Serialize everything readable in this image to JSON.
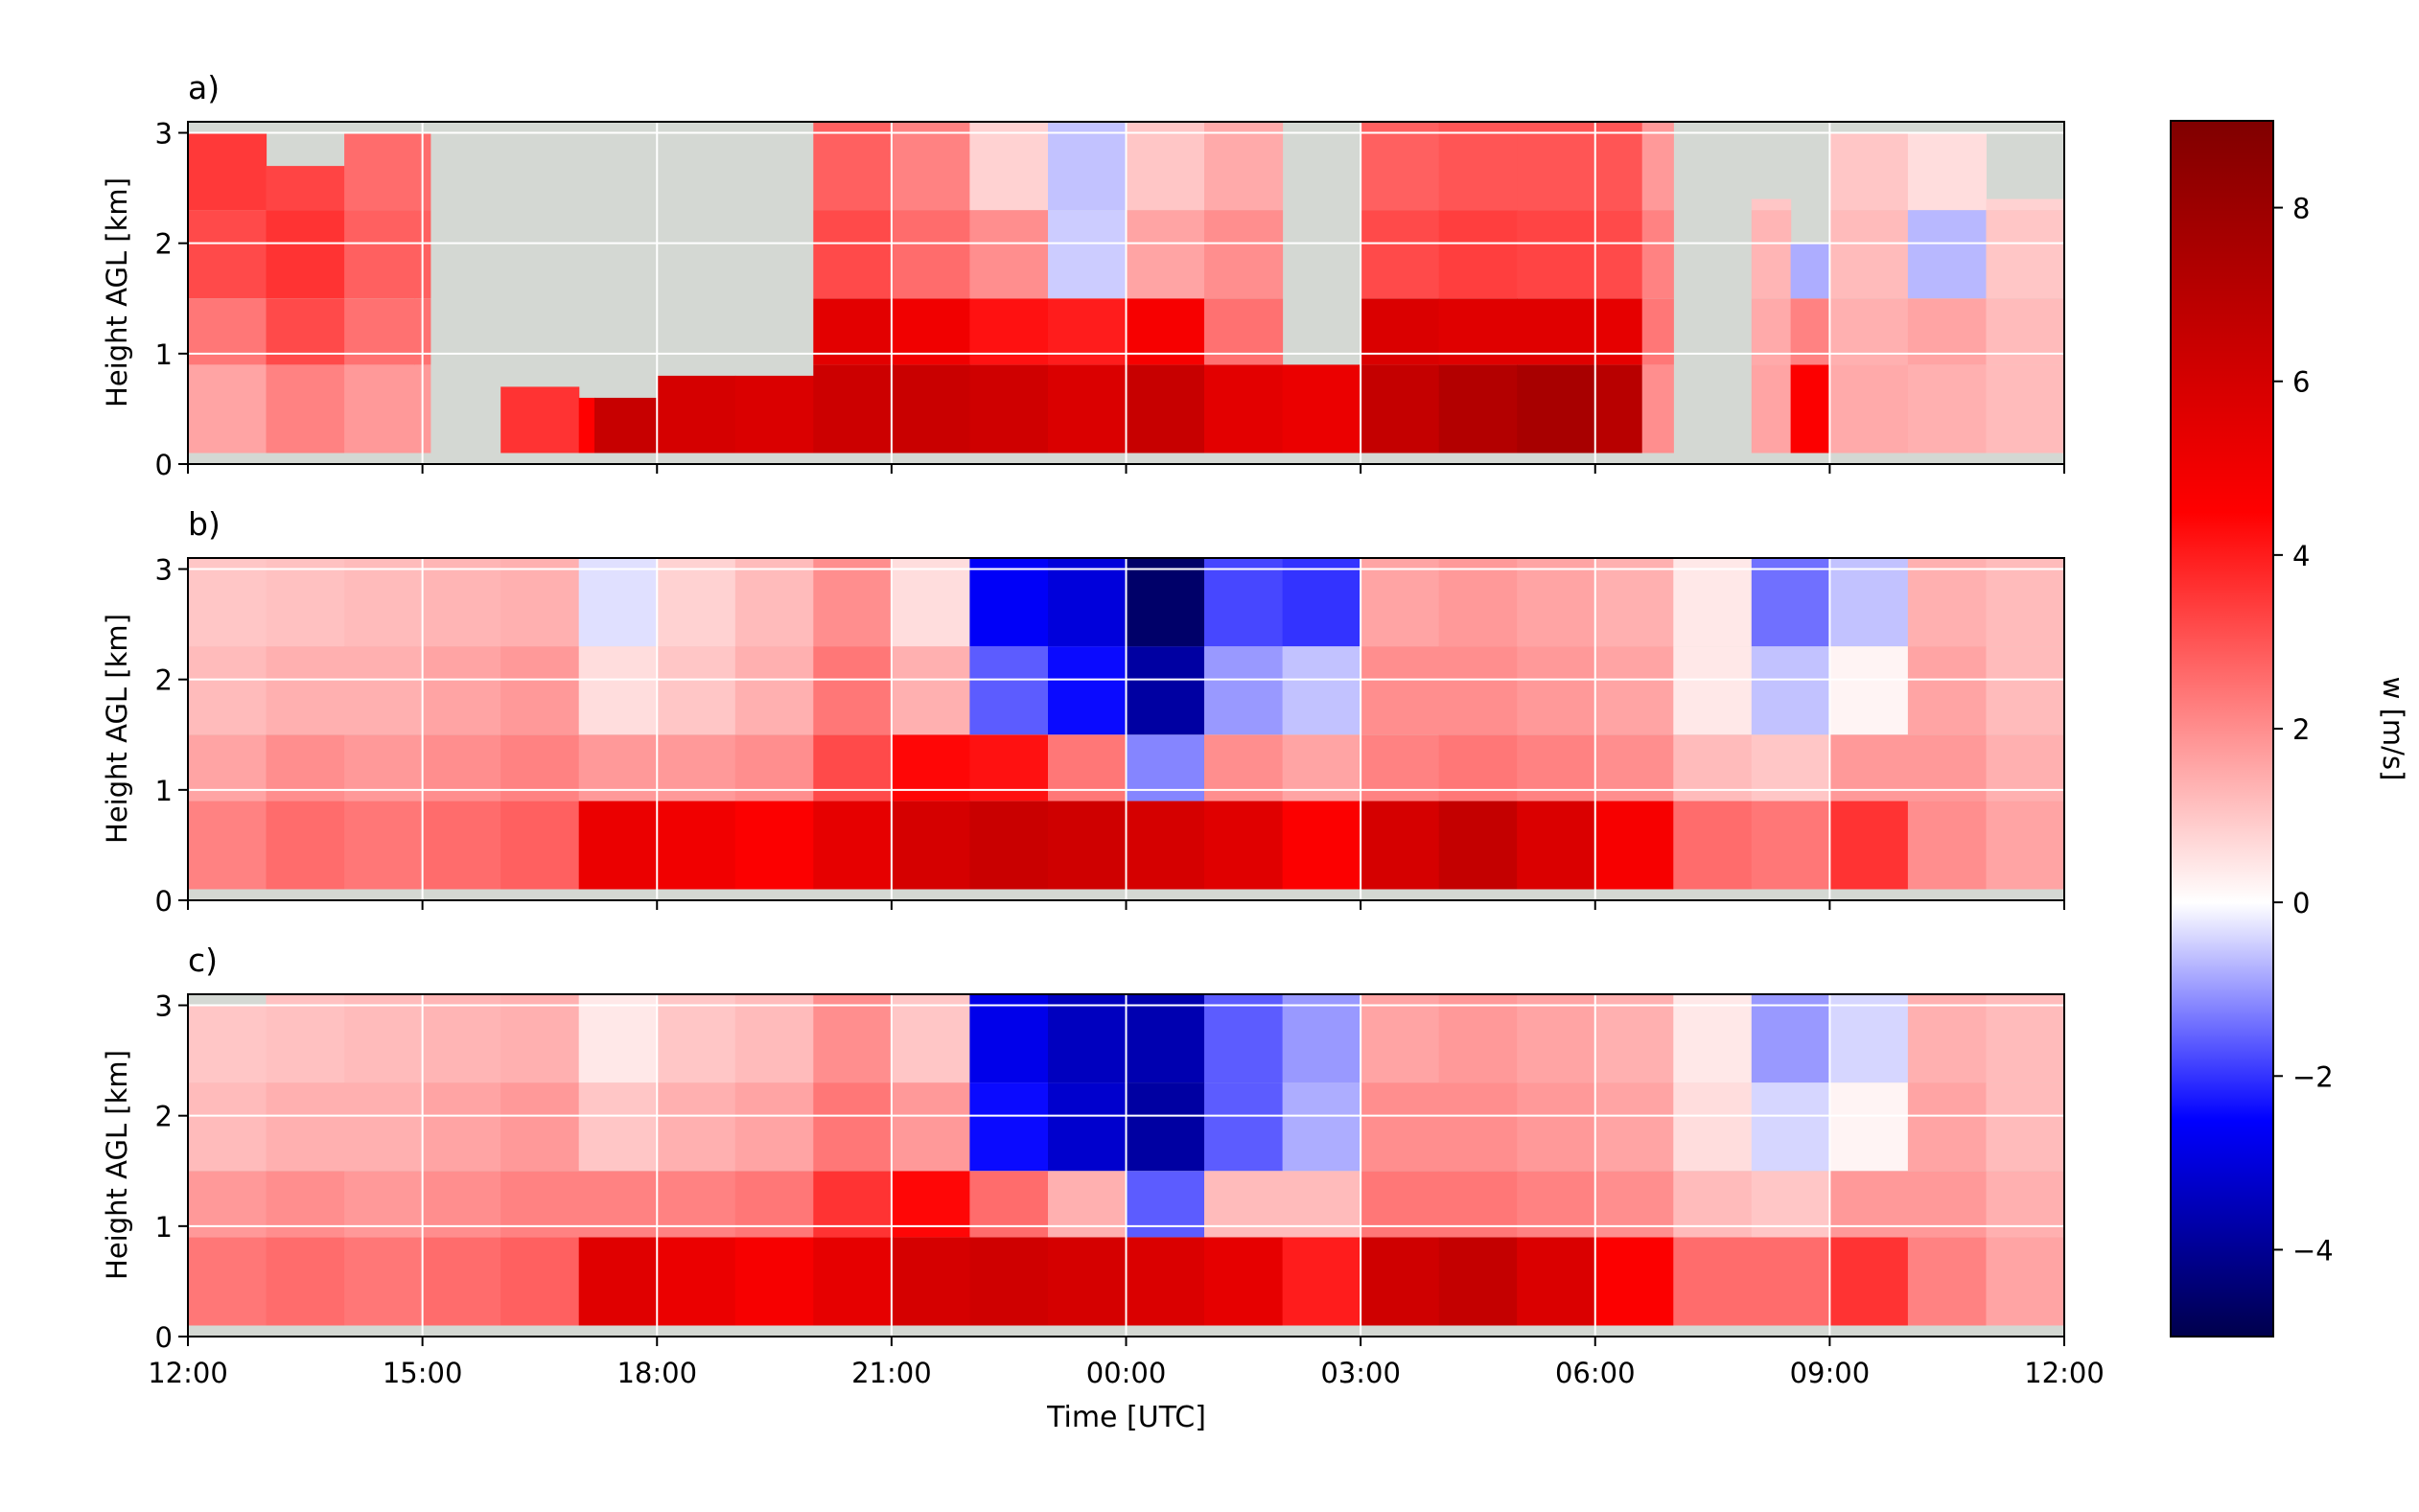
{
  "chart_data": {
    "type": "heatmap",
    "xlabel": "Time [UTC]",
    "x_tick_labels": [
      "12:00",
      "15:00",
      "18:00",
      "21:00",
      "00:00",
      "03:00",
      "06:00",
      "09:00",
      "12:00"
    ],
    "x_range_hours": [
      0,
      24
    ],
    "ylabel": "Height AGL [km]",
    "y_ticks": [
      0,
      1,
      2,
      3
    ],
    "ylim": [
      0,
      3.1
    ],
    "grid": true,
    "panels": [
      {
        "label": "a)",
        "columns": [
          {
            "t": 0.0,
            "top": 3.0,
            "w": [
              1.6,
              2.4,
              3.2,
              3.5
            ]
          },
          {
            "t": 1.0,
            "top": 2.7,
            "w": [
              2.2,
              3.2,
              3.6,
              3.3
            ]
          },
          {
            "t": 2.0,
            "top": 3.0,
            "w": [
              1.8,
              2.5,
              2.8,
              2.6
            ]
          },
          {
            "t": 2.9,
            "top": 3.0,
            "w": [
              1.8,
              2.5,
              2.8,
              2.6
            ]
          },
          {
            "t": 3.1,
            "top": 0.0,
            "w": [
              0,
              0,
              0,
              0
            ]
          },
          {
            "t": 4.0,
            "top": 0.7,
            "w": [
              3.6,
              0,
              0,
              0
            ]
          },
          {
            "t": 5.0,
            "top": 0.6,
            "w": [
              4.5,
              0,
              0,
              0
            ]
          },
          {
            "t": 5.2,
            "top": 0.6,
            "w": [
              6.5,
              6.0,
              0,
              0
            ]
          },
          {
            "t": 6.0,
            "top": 0.8,
            "w": [
              6.0,
              0,
              0,
              0
            ]
          },
          {
            "t": 7.0,
            "top": 0.8,
            "w": [
              5.8,
              0,
              0,
              0
            ]
          },
          {
            "t": 8.0,
            "top": 3.1,
            "w": [
              6.3,
              5.5,
              3.2,
              2.8
            ]
          },
          {
            "t": 9.0,
            "top": 3.1,
            "w": [
              6.4,
              5.0,
              2.6,
              2.2
            ]
          },
          {
            "t": 10.0,
            "top": 3.1,
            "w": [
              6.2,
              4.2,
              2.0,
              0.8
            ]
          },
          {
            "t": 11.0,
            "top": 3.1,
            "w": [
              5.8,
              4.0,
              -0.5,
              -0.6
            ]
          },
          {
            "t": 12.0,
            "top": 3.1,
            "w": [
              6.5,
              4.8,
              1.6,
              1.0
            ]
          },
          {
            "t": 13.0,
            "top": 3.1,
            "w": [
              5.5,
              2.5,
              2.0,
              1.5
            ]
          },
          {
            "t": 14.0,
            "top": 0.9,
            "w": [
              5.2,
              0,
              0,
              0
            ]
          },
          {
            "t": 15.0,
            "top": 3.1,
            "w": [
              6.6,
              5.8,
              3.2,
              2.8
            ]
          },
          {
            "t": 16.0,
            "top": 3.1,
            "w": [
              7.2,
              5.6,
              3.4,
              3.0
            ]
          },
          {
            "t": 17.0,
            "top": 3.1,
            "w": [
              7.6,
              5.6,
              3.3,
              3.0
            ]
          },
          {
            "t": 18.0,
            "top": 3.1,
            "w": [
              7.0,
              5.4,
              3.2,
              3.0
            ]
          },
          {
            "t": 18.6,
            "top": 3.1,
            "w": [
              2.0,
              2.4,
              2.2,
              1.8
            ]
          },
          {
            "t": 19.0,
            "top": 0.0,
            "w": [
              0,
              0,
              0,
              0
            ]
          },
          {
            "t": 20.0,
            "top": 2.4,
            "w": [
              1.6,
              1.5,
              1.3,
              1.0
            ]
          },
          {
            "t": 20.5,
            "top": 2.0,
            "w": [
              4.6,
              2.2,
              -0.8,
              0
            ]
          },
          {
            "t": 21.0,
            "top": 3.0,
            "w": [
              1.5,
              1.4,
              1.2,
              1.0
            ]
          },
          {
            "t": 22.0,
            "top": 3.0,
            "w": [
              1.4,
              1.6,
              -0.7,
              0.6
            ]
          },
          {
            "t": 23.0,
            "top": 2.4,
            "w": [
              1.2,
              1.2,
              1.0,
              0.8
            ]
          },
          {
            "t": 24.0,
            "top": 2.1,
            "w": [
              1.0,
              1.4,
              1.2,
              1.0
            ]
          }
        ]
      },
      {
        "label": "b)",
        "columns": [
          {
            "t": 0.0,
            "top": 3.1,
            "w": [
              2.2,
              1.6,
              1.2,
              1.0
            ]
          },
          {
            "t": 1.0,
            "top": 3.1,
            "w": [
              2.6,
              2.0,
              1.4,
              1.1
            ]
          },
          {
            "t": 2.0,
            "top": 3.1,
            "w": [
              2.4,
              1.8,
              1.4,
              1.2
            ]
          },
          {
            "t": 3.0,
            "top": 3.1,
            "w": [
              2.6,
              2.0,
              1.6,
              1.3
            ]
          },
          {
            "t": 4.0,
            "top": 3.1,
            "w": [
              2.8,
              2.2,
              1.8,
              1.4
            ]
          },
          {
            "t": 5.0,
            "top": 3.1,
            "w": [
              5.2,
              1.8,
              0.6,
              -0.3
            ]
          },
          {
            "t": 6.0,
            "top": 3.1,
            "w": [
              5.0,
              1.8,
              1.0,
              0.8
            ]
          },
          {
            "t": 7.0,
            "top": 3.1,
            "w": [
              4.6,
              2.0,
              1.4,
              1.2
            ]
          },
          {
            "t": 8.0,
            "top": 3.1,
            "w": [
              5.4,
              3.2,
              2.4,
              2.0
            ]
          },
          {
            "t": 9.0,
            "top": 3.1,
            "w": [
              6.0,
              4.4,
              1.4,
              0.6
            ]
          },
          {
            "t": 10.0,
            "top": 3.1,
            "w": [
              6.4,
              4.2,
              -1.6,
              -2.6
            ]
          },
          {
            "t": 11.0,
            "top": 3.1,
            "w": [
              6.2,
              2.4,
              -2.4,
              -3.0
            ]
          },
          {
            "t": 12.0,
            "top": 3.1,
            "w": [
              6.0,
              -1.2,
              -3.8,
              -4.6
            ]
          },
          {
            "t": 13.0,
            "top": 3.1,
            "w": [
              5.6,
              2.0,
              -1.0,
              -1.8
            ]
          },
          {
            "t": 14.0,
            "top": 3.1,
            "w": [
              4.6,
              1.6,
              -0.6,
              -2.0
            ]
          },
          {
            "t": 15.0,
            "top": 3.1,
            "w": [
              6.0,
              2.2,
              2.0,
              1.6
            ]
          },
          {
            "t": 16.0,
            "top": 3.1,
            "w": [
              6.6,
              2.4,
              2.0,
              1.8
            ]
          },
          {
            "t": 17.0,
            "top": 3.1,
            "w": [
              5.8,
              2.2,
              1.8,
              1.6
            ]
          },
          {
            "t": 18.0,
            "top": 3.1,
            "w": [
              4.8,
              2.0,
              1.6,
              1.4
            ]
          },
          {
            "t": 19.0,
            "top": 3.1,
            "w": [
              2.6,
              1.2,
              0.4,
              0.4
            ]
          },
          {
            "t": 20.0,
            "top": 3.1,
            "w": [
              2.4,
              1.0,
              -0.6,
              -1.4
            ]
          },
          {
            "t": 21.0,
            "top": 3.1,
            "w": [
              3.6,
              1.8,
              0.2,
              -0.6
            ]
          },
          {
            "t": 22.0,
            "top": 3.1,
            "w": [
              2.0,
              1.8,
              1.6,
              1.4
            ]
          },
          {
            "t": 23.0,
            "top": 3.1,
            "w": [
              1.6,
              1.4,
              1.2,
              1.2
            ]
          },
          {
            "t": 24.0,
            "top": 3.1,
            "w": [
              1.4,
              1.2,
              1.0,
              1.0
            ]
          }
        ]
      },
      {
        "label": "c)",
        "columns": [
          {
            "t": 0.0,
            "top": 3.0,
            "w": [
              2.4,
              1.8,
              1.2,
              1.0
            ]
          },
          {
            "t": 1.0,
            "top": 3.1,
            "w": [
              2.6,
              2.0,
              1.4,
              1.1
            ]
          },
          {
            "t": 2.0,
            "top": 3.1,
            "w": [
              2.4,
              1.8,
              1.4,
              1.2
            ]
          },
          {
            "t": 3.0,
            "top": 3.1,
            "w": [
              2.6,
              2.0,
              1.6,
              1.3
            ]
          },
          {
            "t": 4.0,
            "top": 3.1,
            "w": [
              2.8,
              2.2,
              1.8,
              1.4
            ]
          },
          {
            "t": 5.0,
            "top": 3.1,
            "w": [
              5.6,
              2.2,
              1.0,
              0.4
            ]
          },
          {
            "t": 6.0,
            "top": 3.1,
            "w": [
              5.2,
              2.2,
              1.4,
              1.0
            ]
          },
          {
            "t": 7.0,
            "top": 3.1,
            "w": [
              4.8,
              2.4,
              1.6,
              1.2
            ]
          },
          {
            "t": 8.0,
            "top": 3.1,
            "w": [
              5.4,
              3.6,
              2.4,
              2.0
            ]
          },
          {
            "t": 9.0,
            "top": 3.1,
            "w": [
              6.0,
              4.4,
              1.8,
              1.0
            ]
          },
          {
            "t": 10.0,
            "top": 3.1,
            "w": [
              6.2,
              2.6,
              -2.4,
              -2.8
            ]
          },
          {
            "t": 11.0,
            "top": 3.1,
            "w": [
              6.0,
              1.4,
              -3.2,
              -3.4
            ]
          },
          {
            "t": 12.0,
            "top": 3.1,
            "w": [
              5.8,
              -1.6,
              -3.8,
              -3.6
            ]
          },
          {
            "t": 13.0,
            "top": 3.1,
            "w": [
              5.4,
              1.2,
              -1.6,
              -1.6
            ]
          },
          {
            "t": 14.0,
            "top": 3.1,
            "w": [
              4.0,
              1.2,
              -0.8,
              -1.0
            ]
          },
          {
            "t": 15.0,
            "top": 3.1,
            "w": [
              6.2,
              2.4,
              2.0,
              1.6
            ]
          },
          {
            "t": 16.0,
            "top": 3.1,
            "w": [
              6.6,
              2.4,
              2.0,
              1.8
            ]
          },
          {
            "t": 17.0,
            "top": 3.1,
            "w": [
              5.8,
              2.2,
              1.8,
              1.6
            ]
          },
          {
            "t": 18.0,
            "top": 3.1,
            "w": [
              4.6,
              2.0,
              1.6,
              1.4
            ]
          },
          {
            "t": 19.0,
            "top": 3.1,
            "w": [
              2.6,
              1.2,
              0.6,
              0.4
            ]
          },
          {
            "t": 20.0,
            "top": 3.1,
            "w": [
              2.6,
              1.0,
              -0.4,
              -1.0
            ]
          },
          {
            "t": 21.0,
            "top": 3.1,
            "w": [
              3.6,
              1.8,
              0.2,
              -0.4
            ]
          },
          {
            "t": 22.0,
            "top": 3.1,
            "w": [
              2.2,
              1.8,
              1.6,
              1.4
            ]
          },
          {
            "t": 23.0,
            "top": 3.1,
            "w": [
              1.6,
              1.4,
              1.2,
              1.2
            ]
          },
          {
            "t": 24.0,
            "top": 2.7,
            "w": [
              1.4,
              1.2,
              1.0,
              1.0
            ]
          }
        ]
      }
    ],
    "colorbar": {
      "label": "w [m/s]",
      "range": [
        -5,
        9
      ],
      "center": 0,
      "ticks": [
        8,
        6,
        4,
        2,
        0,
        -2,
        -4
      ],
      "tick_labels": [
        "8",
        "6",
        "4",
        "2",
        "0",
        "−2",
        "−4"
      ],
      "colormap": "seismic",
      "no_data_color": "#d4d8d3"
    }
  }
}
